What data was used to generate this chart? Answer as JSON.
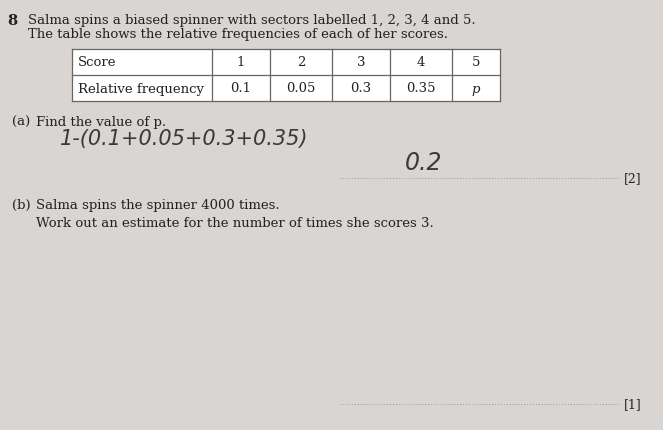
{
  "bg_color": "#d8d5d2",
  "white": "#ffffff",
  "question_number": "8",
  "intro_line1": "Salma spins a biased spinner with sectors labelled 1, 2, 3, 4 and 5.",
  "intro_line2": "The table shows the relative frequencies of each of her scores.",
  "table_headers": [
    "Score",
    "1",
    "2",
    "3",
    "4",
    "5"
  ],
  "table_row_label": "Relative frequency",
  "table_values": [
    "0.1",
    "0.05",
    "0.3",
    "0.35",
    "p"
  ],
  "part_a_label": "(a)",
  "part_a_text": "Find the value of p.",
  "part_a_workings": "1-(0.1+0.05+0.3+0.35)",
  "part_a_answer": "0.2",
  "part_a_marks": "[2]",
  "part_b_label": "(b)",
  "part_b_line1": "Salma spins the spinner 4000 times.",
  "part_b_line2": "Work out an estimate for the number of times she scores 3.",
  "part_b_marks": "[1]",
  "answer_line_color": "#999999",
  "text_color": "#222222",
  "table_border_color": "#666666",
  "handwriting_color": "#3a3a3a",
  "font_size_body": 9.5,
  "font_size_qnum": 10.5,
  "font_size_table": 9.5,
  "font_size_handwrite_work": 15,
  "font_size_handwrite_ans": 17,
  "font_size_marks": 9.0
}
